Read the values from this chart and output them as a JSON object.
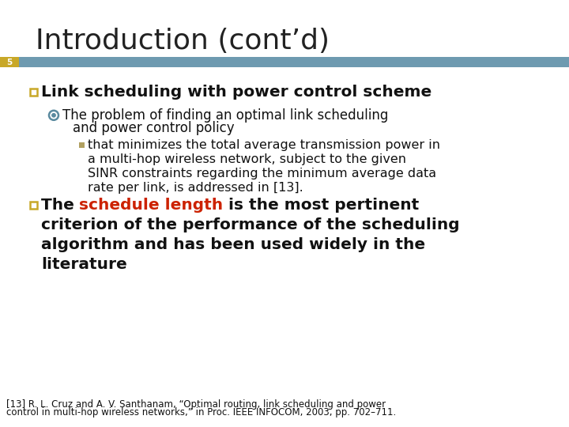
{
  "title": "Introduction (cont’d)",
  "slide_number": "5",
  "bar_color": "#6e9ab0",
  "slide_number_bg": "#c8a828",
  "background_color": "#ffffff",
  "title_color": "#222222",
  "title_fontsize": 26,
  "bullet1_text": "Link scheduling with power control scheme",
  "bullet1_color": "#111111",
  "bullet1_fontsize": 14.5,
  "sub_bullet1_line1": "The problem of finding an optimal link scheduling",
  "sub_bullet1_line2": "and power control policy",
  "sub_bullet1_color": "#111111",
  "sub_bullet1_fontsize": 12,
  "sub_sub_lines": [
    "that minimizes the total average transmission power in",
    "a multi-hop wireless network, subject to the given",
    "SINR constraints regarding the minimum average data",
    "rate per link, is addressed in [13]."
  ],
  "sub_sub_bullet1_color": "#111111",
  "sub_sub_bullet1_fontsize": 11.5,
  "bullet2_pre": "The ",
  "bullet2_highlight": "schedule length",
  "bullet2_post": " is the most pertinent",
  "bullet2_lines": [
    "criterion of the performance of the scheduling",
    "algorithm and has been used widely in the",
    "literature"
  ],
  "bullet2_color": "#111111",
  "bullet2_highlight_color": "#cc2200",
  "bullet2_fontsize": 14.5,
  "footnote_line1": "[13] R. L. Cruz and A. V. Santhanam, “Optimal routing, link scheduling and power",
  "footnote_line2": "control in multi-hop wireless networks,” in Proc. IEEE INFOCOM, 2003, pp. 702–711.",
  "footnote_color": "#111111",
  "footnote_fontsize": 8.5,
  "square_bullet_color": "#c8a828",
  "circle_bullet_color": "#5a8a9f",
  "mini_bullet_color": "#b0a060"
}
